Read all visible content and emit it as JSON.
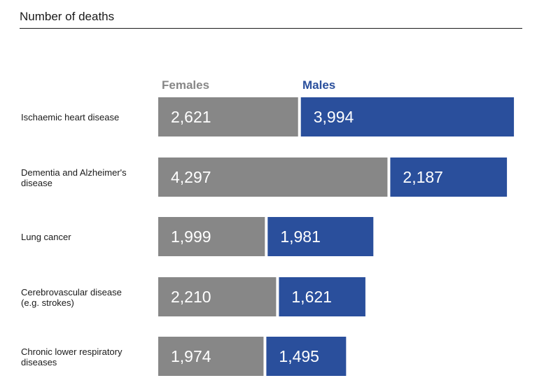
{
  "header": {
    "title": "Number of deaths"
  },
  "colors": {
    "females": "#878787",
    "males": "#2a4f9c"
  },
  "chart_data": {
    "type": "bar",
    "orientation": "horizontal-stacked",
    "title": "Number of deaths",
    "categories": [
      "Ischaemic heart disease",
      "Dementia and Alzheimer's disease",
      "Lung cancer",
      "Cerebrovascular disease (e.g. strokes)",
      "Chronic lower respiratory diseases"
    ],
    "category_lines": [
      [
        "Ischaemic heart disease"
      ],
      [
        "Dementia and Alzheimer's",
        "disease"
      ],
      [
        "Lung cancer"
      ],
      [
        "Cerebrovascular disease",
        "(e.g. strokes)"
      ],
      [
        "Chronic lower respiratory",
        "diseases"
      ]
    ],
    "series": [
      {
        "name": "Females",
        "values": [
          2621,
          4297,
          1999,
          2210,
          1974
        ],
        "labels": [
          "2,621",
          "4,297",
          "1,999",
          "2,210",
          "1,974"
        ]
      },
      {
        "name": "Males",
        "values": [
          3994,
          2187,
          1981,
          1621,
          1495
        ],
        "labels": [
          "3,994",
          "2,187",
          "1,981",
          "1,621",
          "1,495"
        ]
      }
    ],
    "legend": "top",
    "grid": false
  }
}
